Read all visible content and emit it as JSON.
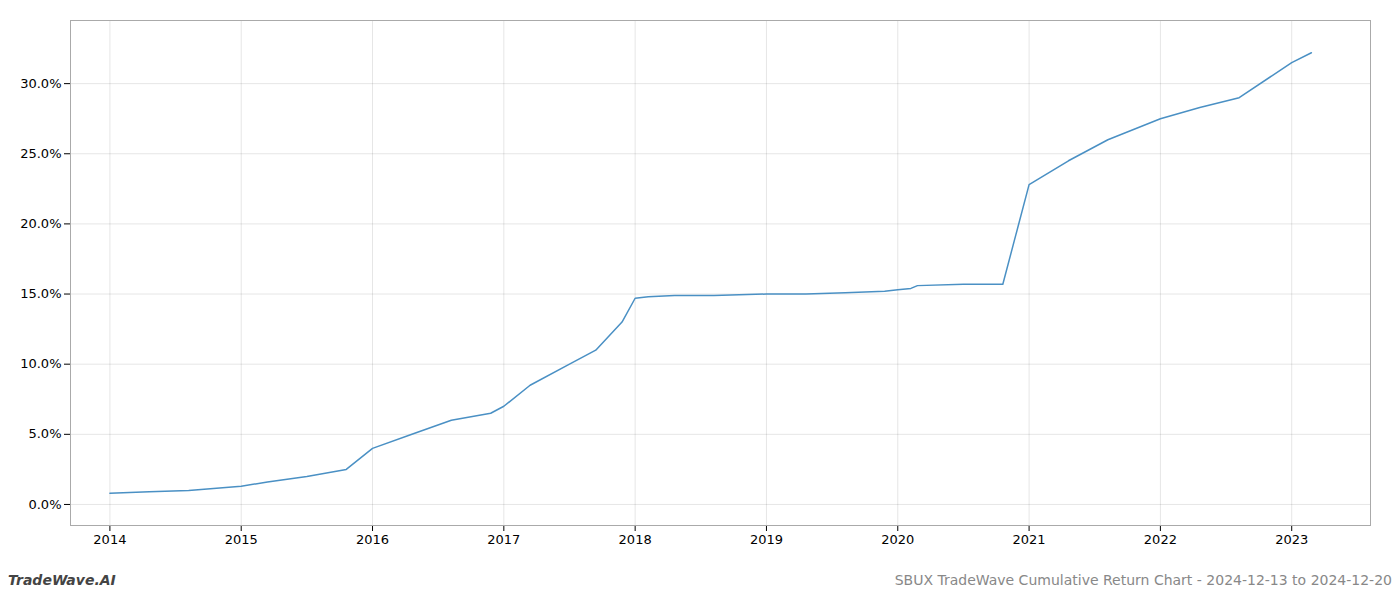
{
  "chart_data": {
    "type": "line",
    "x": [
      2014.0,
      2014.3,
      2014.6,
      2015.0,
      2015.2,
      2015.5,
      2015.8,
      2016.0,
      2016.3,
      2016.6,
      2016.9,
      2017.0,
      2017.2,
      2017.5,
      2017.7,
      2017.9,
      2018.0,
      2018.1,
      2018.3,
      2018.6,
      2019.0,
      2019.3,
      2019.6,
      2019.9,
      2020.0,
      2020.1,
      2020.15,
      2020.5,
      2020.8,
      2021.0,
      2021.3,
      2021.6,
      2022.0,
      2022.3,
      2022.6,
      2023.0,
      2023.15
    ],
    "values": [
      0.008,
      0.009,
      0.01,
      0.013,
      0.016,
      0.02,
      0.025,
      0.04,
      0.05,
      0.06,
      0.065,
      0.07,
      0.085,
      0.1,
      0.11,
      0.13,
      0.147,
      0.148,
      0.149,
      0.149,
      0.15,
      0.15,
      0.151,
      0.152,
      0.153,
      0.154,
      0.156,
      0.157,
      0.157,
      0.228,
      0.245,
      0.26,
      0.275,
      0.283,
      0.29,
      0.315,
      0.322
    ],
    "color": "#4a90c4",
    "xlim": [
      2013.7,
      2023.6
    ],
    "xticks": [
      2014,
      2015,
      2016,
      2017,
      2018,
      2019,
      2020,
      2021,
      2022,
      2023
    ],
    "ylim": [
      -0.015,
      0.345
    ],
    "yticks": [
      {
        "value": 0.0,
        "label": "0.0%"
      },
      {
        "value": 0.05,
        "label": "5.0%"
      },
      {
        "value": 0.1,
        "label": "10.0%"
      },
      {
        "value": 0.15,
        "label": "15.0%"
      },
      {
        "value": 0.2,
        "label": "20.0%"
      },
      {
        "value": 0.25,
        "label": "25.0%"
      },
      {
        "value": 0.3,
        "label": "30.0%"
      }
    ],
    "grid": true,
    "annotations": [
      "TradeWave.AI",
      "SBUX TradeWave Cumulative Return Chart - 2024-12-13 to 2024-12-20"
    ]
  }
}
